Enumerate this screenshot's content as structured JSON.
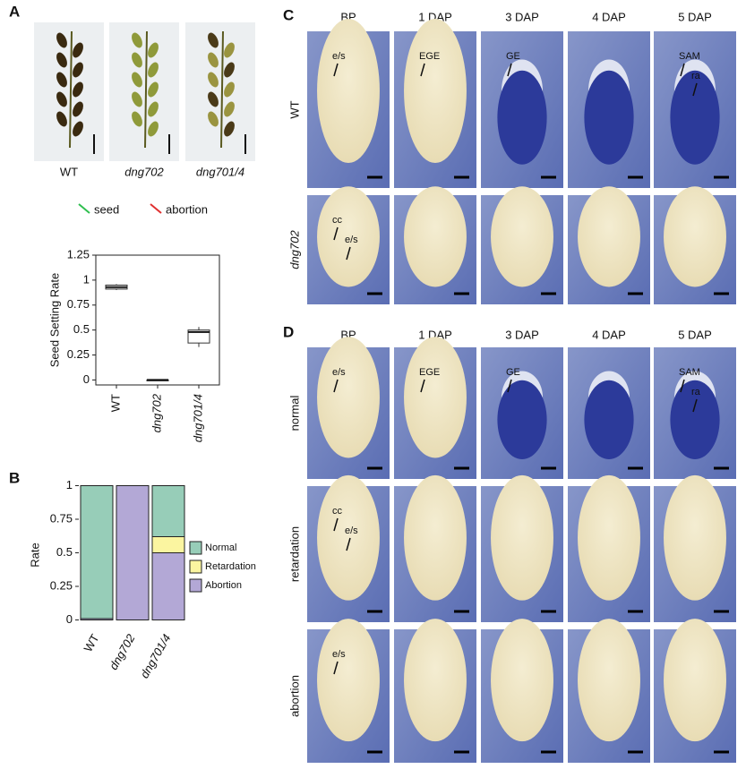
{
  "panels": {
    "A": {
      "letter": "A",
      "photos": [
        "WT",
        "dng702",
        "dng701/4"
      ],
      "legend": [
        "seed",
        "abortion"
      ]
    },
    "B": {
      "letter": "B"
    },
    "C": {
      "letter": "C",
      "columns": [
        "BP",
        "1 DAP",
        "3 DAP",
        "4 DAP",
        "5 DAP"
      ],
      "rows": [
        {
          "label": "WT",
          "cells": [
            [
              "e/s"
            ],
            [
              "EGE"
            ],
            [
              "GE"
            ],
            [],
            [
              "SAM",
              "ra"
            ]
          ]
        },
        {
          "label": "dng702",
          "cells": [
            [
              "cc",
              "e/s"
            ],
            [],
            [],
            [],
            []
          ]
        }
      ]
    },
    "D": {
      "letter": "D",
      "columns": [
        "BP",
        "1 DAP",
        "3 DAP",
        "4 DAP",
        "5 DAP"
      ],
      "rows": [
        {
          "label": "normal",
          "cells": [
            [
              "e/s"
            ],
            [
              "EGE"
            ],
            [
              "GE"
            ],
            [],
            [
              "SAM",
              "ra"
            ]
          ]
        },
        {
          "label": "retardation",
          "cells": [
            [
              "cc",
              "e/s"
            ],
            [],
            [],
            [],
            []
          ]
        },
        {
          "label": "abortion",
          "cells": [
            [
              "e/s"
            ],
            [],
            [],
            [],
            []
          ]
        }
      ]
    }
  },
  "chart_data": [
    {
      "type": "box",
      "ylabel": "Seed Setting Rate",
      "categories": [
        "WT",
        "dng702",
        "dng701/4"
      ],
      "boxes": [
        {
          "min": 0.9,
          "q1": 0.91,
          "median": 0.93,
          "q3": 0.95,
          "max": 0.96
        },
        {
          "min": 0,
          "q1": 0,
          "median": 0,
          "q3": 0,
          "max": 0
        },
        {
          "min": 0.33,
          "q1": 0.37,
          "median": 0.48,
          "q3": 0.5,
          "max": 0.53
        }
      ],
      "ylim": [
        -0.05,
        1.25
      ],
      "yticks": [
        0,
        0.25,
        0.5,
        0.75,
        1,
        1.25
      ]
    },
    {
      "type": "bar",
      "stacked": true,
      "ylabel": "Rate",
      "categories": [
        "WT",
        "dng702",
        "dng701/4"
      ],
      "series": [
        {
          "name": "Abortion",
          "color": "#b3a8d6",
          "values": [
            0.01,
            1,
            0.5
          ]
        },
        {
          "name": "Retardation",
          "color": "#fbf5a0",
          "values": [
            0,
            0,
            0.12
          ]
        },
        {
          "name": "Normal",
          "color": "#97cdb8",
          "values": [
            0.99,
            0,
            0.38
          ]
        }
      ],
      "ylim": [
        -0.05,
        1.05
      ],
      "yticks": [
        0,
        0.25,
        0.5,
        0.75,
        1
      ]
    }
  ]
}
